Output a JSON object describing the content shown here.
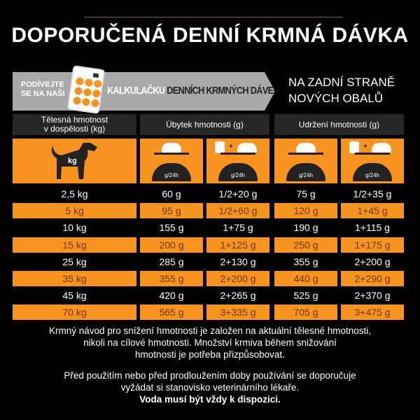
{
  "title": "DOPORUČENÁ DENNÍ KRMNÁ DÁVKA",
  "banner": {
    "line1": "PODÍVEJTE",
    "line2": "SE NA NAŠI",
    "calc_white": "KALKULAČKU",
    "calc_dark": " DENNÍCH KRMNÝCH DÁVEK",
    "side1": "NA ZADNÍ STRANĚ",
    "side2": "NOVÝCH OBALŮ"
  },
  "colors": {
    "orange": "#f7931e",
    "header": "#262626",
    "banner": "#a9a9a9"
  },
  "table": {
    "headers": {
      "weight1": "Tělesná hmotnost",
      "weight2": "v dospělosti (kg)",
      "loss": "Úbytek hmotnosti (g)",
      "maintain": "Udržení hmotnosti (g)"
    },
    "icons": {
      "dog_label": "kg",
      "unit": "g/24h",
      "plus": "+"
    },
    "rows": [
      [
        "2,5 kg",
        "60 g",
        "1/2+20 g",
        "75 g",
        "1/2+35 g"
      ],
      [
        "5 kg",
        "95 g",
        "1/2+60 g",
        "120 g",
        "1+45 g"
      ],
      [
        "10 kg",
        "155 g",
        "1+75 g",
        "190 g",
        "1+115 g"
      ],
      [
        "15 kg",
        "200 g",
        "1+125 g",
        "250 g",
        "1+175 g"
      ],
      [
        "25 kg",
        "285 g",
        "2+130 g",
        "355 g",
        "2+200 g"
      ],
      [
        "35 kg",
        "355 g",
        "2+200 g",
        "440 g",
        "2+290 g"
      ],
      [
        "45 kg",
        "420 g",
        "2+265 g",
        "525 g",
        "2+370 g"
      ],
      [
        "70 kg",
        "565 g",
        "3+335 g",
        "705 g",
        "3+475 g"
      ]
    ]
  },
  "notes": {
    "p1a": "Krmný návod pro snížení hmotnosti je založen na aktuální tělesné hmotnosti,",
    "p1b": "nikoli na cílové hmotnosti. Množství krmiva během snižování",
    "p1c": "hmotnosti je potřeba přizpůsobovat.",
    "p2a": "Před použitím nebo před prodloužením doby používání se doporučuje",
    "p2b": "vyžádat si stanovisko veterinárního lékaře.",
    "p3": "Voda musí být vždy k dispozici."
  }
}
